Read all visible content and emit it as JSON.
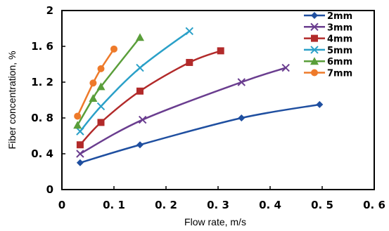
{
  "chart_data": {
    "type": "line",
    "xlabel": "Flow rate, m/s",
    "ylabel": "Fiber concentration, %",
    "xlim": [
      0,
      0.6
    ],
    "ylim": [
      0,
      2
    ],
    "x_ticks": [
      0,
      0.1,
      0.2,
      0.3,
      0.4,
      0.5,
      0.6
    ],
    "x_tick_labels": [
      "0",
      "0. 1",
      "0. 2",
      "0. 3",
      "0. 4",
      "0. 5",
      "0. 6"
    ],
    "y_ticks": [
      0,
      0.4,
      0.8,
      1.2,
      1.6,
      2
    ],
    "y_tick_labels": [
      "0",
      "0. 4",
      "0. 8",
      "1. 2",
      "1. 6",
      "2"
    ],
    "grid": false,
    "legend_position": "top-right",
    "series": [
      {
        "name": "2mm",
        "color": "#1f4fa0",
        "marker": "diamond",
        "x": [
          0.035,
          0.15,
          0.345,
          0.495
        ],
        "y": [
          0.3,
          0.5,
          0.8,
          0.95
        ]
      },
      {
        "name": "3mm",
        "color": "#6a3d8f",
        "marker": "x",
        "x": [
          0.035,
          0.155,
          0.345,
          0.43
        ],
        "y": [
          0.4,
          0.78,
          1.2,
          1.36
        ]
      },
      {
        "name": "4mm",
        "color": "#b22a2a",
        "marker": "square",
        "x": [
          0.035,
          0.075,
          0.15,
          0.245,
          0.305
        ],
        "y": [
          0.5,
          0.75,
          1.1,
          1.42,
          1.55
        ]
      },
      {
        "name": "5mm",
        "color": "#2aa0c8",
        "marker": "x",
        "x": [
          0.035,
          0.075,
          0.15,
          0.245
        ],
        "y": [
          0.65,
          0.93,
          1.36,
          1.77
        ]
      },
      {
        "name": "6mm",
        "color": "#5a9e3a",
        "marker": "triangle",
        "x": [
          0.03,
          0.06,
          0.075,
          0.15
        ],
        "y": [
          0.72,
          1.02,
          1.15,
          1.7
        ]
      },
      {
        "name": "7mm",
        "color": "#ee7a2a",
        "marker": "circle",
        "x": [
          0.03,
          0.06,
          0.075,
          0.1
        ],
        "y": [
          0.82,
          1.19,
          1.35,
          1.57
        ]
      }
    ]
  }
}
